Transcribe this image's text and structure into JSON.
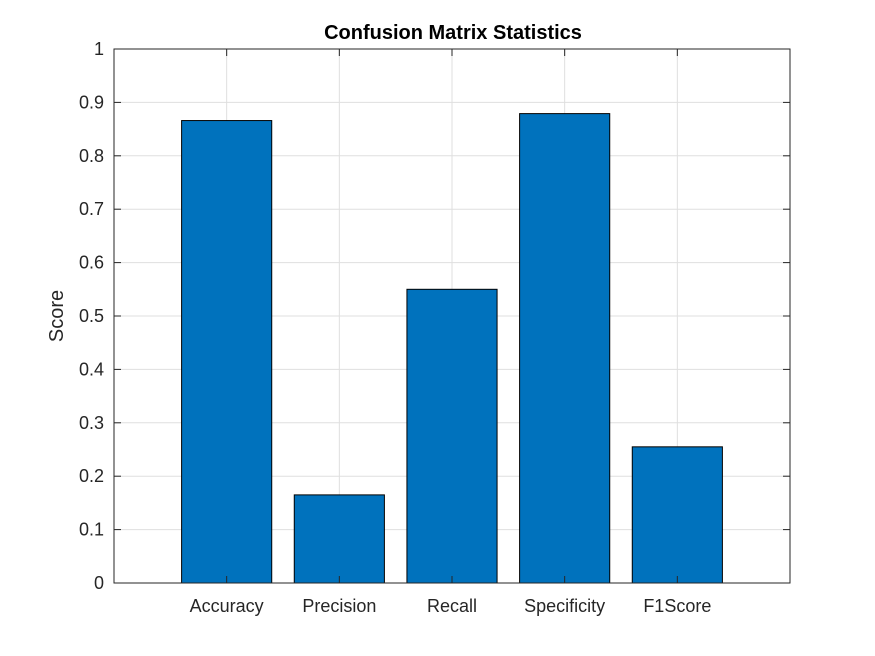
{
  "chart_data": {
    "type": "bar",
    "title": "Confusion Matrix Statistics",
    "xlabel": "",
    "ylabel": "Score",
    "categories": [
      "Accuracy",
      "Precision",
      "Recall",
      "Specificity",
      "F1Score"
    ],
    "values": [
      0.866,
      0.165,
      0.55,
      0.879,
      0.255
    ],
    "ylim": [
      0,
      1
    ],
    "yticks": [
      "0",
      "0.1",
      "0.2",
      "0.3",
      "0.4",
      "0.5",
      "0.6",
      "0.7",
      "0.8",
      "0.9",
      "1"
    ],
    "grid": true,
    "bar_color": "#0072BD"
  }
}
